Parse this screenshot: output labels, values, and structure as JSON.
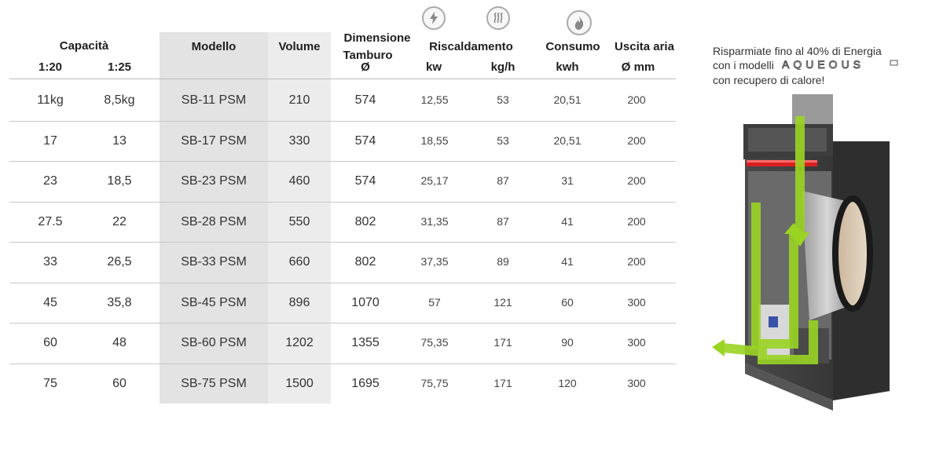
{
  "headers": {
    "capacita": "Capacità",
    "cap_120": "1:20",
    "cap_125": "1:25",
    "modello": "Modello",
    "volume": "Volume",
    "dimensione_line1": "Dimensione",
    "dimensione_line2": "Tamburo",
    "dimensione_unit": "Ø",
    "riscaldamento": "Riscaldamento",
    "risc_kw": "kw",
    "risc_kgh": "kg/h",
    "consumo": "Consumo",
    "consumo_unit": "kwh",
    "uscita": "Uscita aria",
    "uscita_unit": "Ø mm"
  },
  "icons": {
    "electric": "lightning-icon",
    "steam": "steam-icon",
    "gas": "flame-icon"
  },
  "rows": [
    {
      "c120": "11kg",
      "c125": "8,5kg",
      "model": "SB-11 PSM",
      "volume": "210",
      "drum": "574",
      "kw": "12,55",
      "kgh": "53",
      "kwh": "20,51",
      "air": "200"
    },
    {
      "c120": "17",
      "c125": "13",
      "model": "SB-17 PSM",
      "volume": "330",
      "drum": "574",
      "kw": "18,55",
      "kgh": "53",
      "kwh": "20,51",
      "air": "200"
    },
    {
      "c120": "23",
      "c125": "18,5",
      "model": "SB-23 PSM",
      "volume": "460",
      "drum": "574",
      "kw": "25,17",
      "kgh": "87",
      "kwh": "31",
      "air": "200"
    },
    {
      "c120": "27.5",
      "c125": "22",
      "model": "SB-28 PSM",
      "volume": "550",
      "drum": "802",
      "kw": "31,35",
      "kgh": "87",
      "kwh": "41",
      "air": "200"
    },
    {
      "c120": "33",
      "c125": "26,5",
      "model": "SB-33 PSM",
      "volume": "660",
      "drum": "802",
      "kw": "37,35",
      "kgh": "89",
      "kwh": "41",
      "air": "200"
    },
    {
      "c120": "45",
      "c125": "35,8",
      "model": "SB-45 PSM",
      "volume": "896",
      "drum": "1070",
      "kw": "57",
      "kgh": "121",
      "kwh": "60",
      "air": "300"
    },
    {
      "c120": "60",
      "c125": "48",
      "model": "SB-60 PSM",
      "volume": "1202",
      "drum": "1355",
      "kw": "75,35",
      "kgh": "171",
      "kwh": "90",
      "air": "300"
    },
    {
      "c120": "75",
      "c125": "60",
      "model": "SB-75 PSM",
      "volume": "1500",
      "drum": "1695",
      "kw": "75,75",
      "kgh": "171",
      "kwh": "120",
      "air": "300"
    }
  ],
  "promo": {
    "line1": "Risparmiate fino al 40% di Energia",
    "line2": "con i modelli",
    "brand": "AQUEOUS",
    "line3": "con recupero di calore!"
  },
  "colors": {
    "shade_model": "#e3e3e3",
    "arrow_green": "#9ad423",
    "heater_red": "#d92020"
  }
}
